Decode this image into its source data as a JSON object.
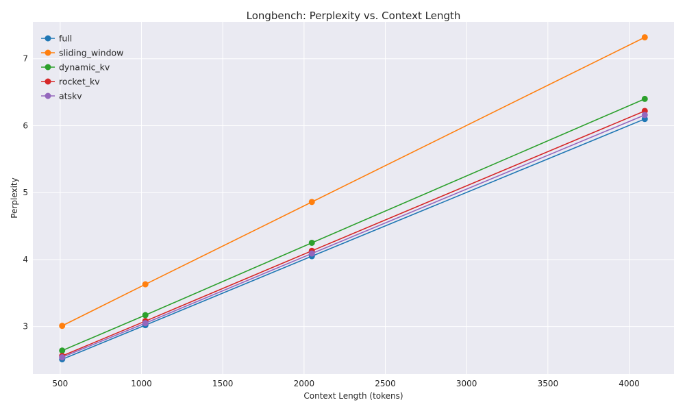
{
  "chart_data": {
    "type": "line",
    "title": "Longbench: Perplexity vs. Context Length",
    "xlabel": "Context Length (tokens)",
    "ylabel": "Perplexity",
    "x": [
      512,
      1024,
      2048,
      4096
    ],
    "xlim": [
      332,
      4276
    ],
    "ylim": [
      2.29,
      7.55
    ],
    "xticks": [
      500,
      1000,
      1500,
      2000,
      2500,
      3000,
      3500,
      4000
    ],
    "yticks": [
      3,
      4,
      5,
      6,
      7
    ],
    "grid": true,
    "legend_position": "top-left",
    "series": [
      {
        "name": "full",
        "color": "#1f77b4",
        "values": [
          2.51,
          3.02,
          4.05,
          6.1
        ]
      },
      {
        "name": "sliding_window",
        "color": "#ff7f0e",
        "values": [
          3.01,
          3.63,
          4.86,
          7.32
        ]
      },
      {
        "name": "dynamic_kv",
        "color": "#2ca02c",
        "values": [
          2.64,
          3.17,
          4.25,
          6.4
        ]
      },
      {
        "name": "rocket_kv",
        "color": "#d62728",
        "values": [
          2.56,
          3.08,
          4.13,
          6.22
        ]
      },
      {
        "name": "atskv",
        "color": "#9467bd",
        "values": [
          2.54,
          3.05,
          4.09,
          6.16
        ]
      }
    ]
  }
}
